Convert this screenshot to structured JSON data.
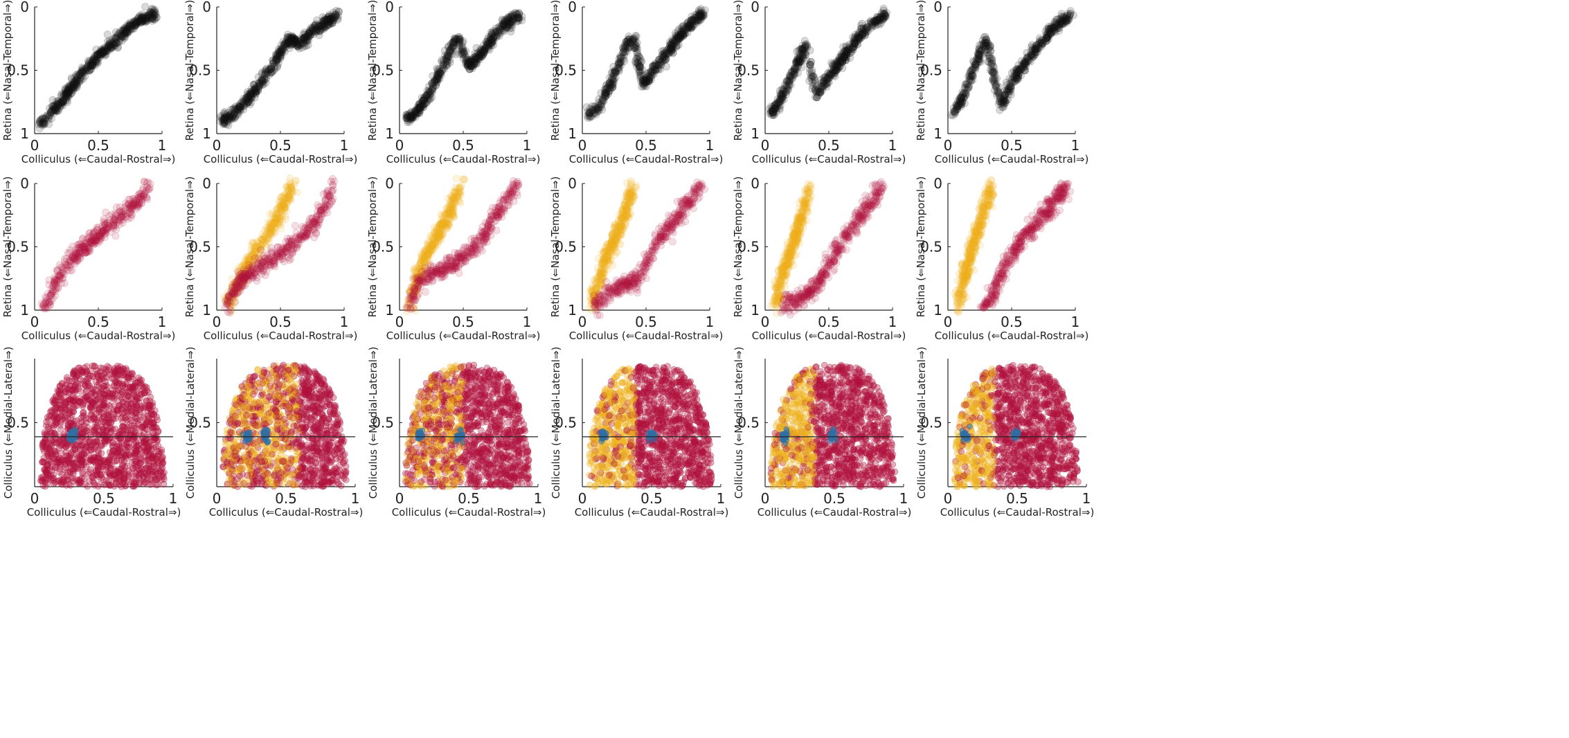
{
  "colors": {
    "black_points": "#111111",
    "crimson": "#b0123d",
    "gold": "#eeb11e",
    "blue": "#2f6fa4",
    "axis": "#222222"
  },
  "labels": {
    "xlabel": "Colliculus (⇐Caudal-Rostral⇒)",
    "ylabel_retina": "Retina (⇐Nasal-Temporal⇒)",
    "ylabel_colliculus": "Colliculus (⇐Medial-Lateral⇒)"
  },
  "chart_data": [
    {
      "panel": "row1-col1",
      "type": "scatter",
      "xlim": [
        0,
        1
      ],
      "ylim": [
        1,
        0
      ],
      "y_reversed": true,
      "xticks": [
        "0",
        "0.5",
        "1"
      ],
      "yticks": [
        "0",
        "0.5",
        "1"
      ],
      "series": [
        {
          "color": "black",
          "x": [
            0.04,
            0.1,
            0.2,
            0.3,
            0.4,
            0.5,
            0.6,
            0.7,
            0.8,
            0.9,
            0.95
          ],
          "y": [
            0.92,
            0.88,
            0.76,
            0.62,
            0.5,
            0.39,
            0.3,
            0.2,
            0.12,
            0.07,
            0.06
          ]
        }
      ]
    },
    {
      "panel": "row1-col2",
      "type": "scatter",
      "xlim": [
        0,
        1
      ],
      "ylim": [
        1,
        0
      ],
      "y_reversed": true,
      "xticks": [
        "0",
        "0.5",
        "1"
      ],
      "yticks": [
        "0",
        "0.5",
        "1"
      ],
      "series": [
        {
          "color": "black",
          "x": [
            0.04,
            0.15,
            0.25,
            0.35,
            0.45,
            0.52,
            0.58,
            0.65,
            0.75,
            0.85,
            0.95
          ],
          "y": [
            0.9,
            0.84,
            0.72,
            0.6,
            0.45,
            0.32,
            0.25,
            0.3,
            0.2,
            0.12,
            0.06
          ]
        }
      ]
    },
    {
      "panel": "row1-col3",
      "type": "scatter",
      "xlim": [
        0,
        1
      ],
      "ylim": [
        1,
        0
      ],
      "y_reversed": true,
      "xticks": [
        "0",
        "0.5",
        "1"
      ],
      "yticks": [
        "0",
        "0.5",
        "1"
      ],
      "series": [
        {
          "color": "black",
          "x": [
            0.04,
            0.15,
            0.25,
            0.35,
            0.45,
            0.55,
            0.65,
            0.75,
            0.85,
            0.95
          ],
          "y": [
            0.88,
            0.82,
            0.65,
            0.45,
            0.23,
            0.48,
            0.35,
            0.22,
            0.12,
            0.07
          ]
        }
      ]
    },
    {
      "panel": "row1-col4",
      "type": "scatter",
      "xlim": [
        0,
        1
      ],
      "ylim": [
        1,
        0
      ],
      "y_reversed": true,
      "xticks": [
        "0",
        "0.5",
        "1"
      ],
      "yticks": [
        "0",
        "0.5",
        "1"
      ],
      "series": [
        {
          "color": "black",
          "x": [
            0.04,
            0.12,
            0.2,
            0.28,
            0.35,
            0.4,
            0.48,
            0.55,
            0.65,
            0.75,
            0.85,
            0.95
          ],
          "y": [
            0.84,
            0.8,
            0.65,
            0.48,
            0.3,
            0.24,
            0.62,
            0.52,
            0.38,
            0.25,
            0.13,
            0.05
          ]
        }
      ]
    },
    {
      "panel": "row1-col5",
      "type": "scatter",
      "xlim": [
        0,
        1
      ],
      "ylim": [
        1,
        0
      ],
      "y_reversed": true,
      "xticks": [
        "0",
        "0.5",
        "1"
      ],
      "yticks": [
        "0",
        "0.5",
        "1"
      ],
      "series": [
        {
          "color": "black",
          "x": [
            0.04,
            0.1,
            0.18,
            0.25,
            0.32,
            0.4,
            0.45,
            0.55,
            0.65,
            0.75,
            0.85,
            0.95
          ],
          "y": [
            0.84,
            0.78,
            0.6,
            0.45,
            0.3,
            0.7,
            0.62,
            0.48,
            0.35,
            0.22,
            0.12,
            0.06
          ]
        }
      ]
    },
    {
      "panel": "row1-col6",
      "type": "scatter",
      "xlim": [
        0,
        1
      ],
      "ylim": [
        1,
        0
      ],
      "y_reversed": true,
      "xticks": [
        "0",
        "0.5",
        "1"
      ],
      "yticks": [
        "0",
        "0.5",
        "1"
      ],
      "series": [
        {
          "color": "black",
          "x": [
            0.04,
            0.1,
            0.17,
            0.23,
            0.3,
            0.35,
            0.42,
            0.5,
            0.6,
            0.7,
            0.8,
            0.9,
            0.97
          ],
          "y": [
            0.84,
            0.75,
            0.58,
            0.42,
            0.25,
            0.5,
            0.78,
            0.6,
            0.45,
            0.32,
            0.2,
            0.1,
            0.06
          ]
        }
      ]
    },
    {
      "panel": "row2-col1",
      "type": "scatter",
      "xlim": [
        0,
        1
      ],
      "ylim": [
        1,
        0
      ],
      "y_reversed": true,
      "xticks": [
        "0",
        "0.5",
        "1"
      ],
      "yticks": [
        "0",
        "0.5",
        "1"
      ],
      "series": [
        {
          "color": "crimson",
          "x": [
            0.08,
            0.15,
            0.25,
            0.35,
            0.45,
            0.55,
            0.65,
            0.75,
            0.85,
            0.9
          ],
          "y": [
            0.97,
            0.82,
            0.65,
            0.55,
            0.46,
            0.36,
            0.28,
            0.2,
            0.1,
            0.02
          ]
        }
      ]
    },
    {
      "panel": "row2-col2",
      "type": "scatter",
      "xlim": [
        0,
        1
      ],
      "ylim": [
        1,
        0
      ],
      "y_reversed": true,
      "xticks": [
        "0",
        "0.5",
        "1"
      ],
      "yticks": [
        "0",
        "0.5",
        "1"
      ],
      "series": [
        {
          "color": "gold",
          "x": [
            0.08,
            0.15,
            0.25,
            0.35,
            0.45,
            0.55,
            0.6
          ],
          "y": [
            0.97,
            0.82,
            0.62,
            0.48,
            0.32,
            0.12,
            0.02
          ]
        },
        {
          "color": "crimson",
          "x": [
            0.08,
            0.15,
            0.25,
            0.4,
            0.55,
            0.7,
            0.8,
            0.88,
            0.92
          ],
          "y": [
            0.97,
            0.82,
            0.72,
            0.62,
            0.52,
            0.4,
            0.25,
            0.1,
            0.02
          ]
        }
      ]
    },
    {
      "panel": "row2-col3",
      "type": "scatter",
      "xlim": [
        0,
        1
      ],
      "ylim": [
        1,
        0
      ],
      "y_reversed": true,
      "xticks": [
        "0",
        "0.5",
        "1"
      ],
      "yticks": [
        "0",
        "0.5",
        "1"
      ],
      "series": [
        {
          "color": "gold",
          "x": [
            0.08,
            0.12,
            0.2,
            0.28,
            0.36,
            0.44,
            0.48
          ],
          "y": [
            0.97,
            0.8,
            0.6,
            0.45,
            0.3,
            0.12,
            0.02
          ]
        },
        {
          "color": "crimson",
          "x": [
            0.08,
            0.15,
            0.3,
            0.45,
            0.58,
            0.68,
            0.78,
            0.86,
            0.92
          ],
          "y": [
            0.97,
            0.78,
            0.7,
            0.62,
            0.52,
            0.38,
            0.22,
            0.1,
            0.02
          ]
        }
      ]
    },
    {
      "panel": "row2-col4",
      "type": "scatter",
      "xlim": [
        0,
        1
      ],
      "ylim": [
        1,
        0
      ],
      "y_reversed": true,
      "xticks": [
        "0",
        "0.5",
        "1"
      ],
      "yticks": [
        "0",
        "0.5",
        "1"
      ],
      "series": [
        {
          "color": "gold",
          "x": [
            0.08,
            0.12,
            0.18,
            0.25,
            0.32,
            0.38,
            0.4
          ],
          "y": [
            0.97,
            0.8,
            0.6,
            0.45,
            0.28,
            0.1,
            0.02
          ]
        },
        {
          "color": "crimson",
          "x": [
            0.1,
            0.2,
            0.35,
            0.45,
            0.52,
            0.6,
            0.7,
            0.8,
            0.88,
            0.93
          ],
          "y": [
            0.97,
            0.87,
            0.8,
            0.75,
            0.6,
            0.45,
            0.32,
            0.2,
            0.08,
            0.02
          ]
        }
      ]
    },
    {
      "panel": "row2-col5",
      "type": "scatter",
      "xlim": [
        0,
        1
      ],
      "ylim": [
        1,
        0
      ],
      "y_reversed": true,
      "xticks": [
        "0",
        "0.5",
        "1"
      ],
      "yticks": [
        "0",
        "0.5",
        "1"
      ],
      "series": [
        {
          "color": "gold",
          "x": [
            0.08,
            0.12,
            0.18,
            0.24,
            0.3,
            0.34
          ],
          "y": [
            0.97,
            0.78,
            0.58,
            0.42,
            0.22,
            0.02
          ]
        },
        {
          "color": "crimson",
          "x": [
            0.15,
            0.28,
            0.4,
            0.48,
            0.55,
            0.63,
            0.72,
            0.8,
            0.88,
            0.92
          ],
          "y": [
            0.97,
            0.9,
            0.82,
            0.68,
            0.55,
            0.42,
            0.3,
            0.2,
            0.08,
            0.02
          ]
        }
      ]
    },
    {
      "panel": "row2-col6",
      "type": "scatter",
      "xlim": [
        0,
        1
      ],
      "ylim": [
        1,
        0
      ],
      "y_reversed": true,
      "xticks": [
        "0",
        "0.5",
        "1"
      ],
      "yticks": [
        "0",
        "0.5",
        "1"
      ],
      "series": [
        {
          "color": "gold",
          "x": [
            0.08,
            0.12,
            0.17,
            0.22,
            0.28,
            0.34
          ],
          "y": [
            0.97,
            0.78,
            0.58,
            0.42,
            0.22,
            0.02
          ]
        },
        {
          "color": "crimson",
          "x": [
            0.28,
            0.35,
            0.42,
            0.5,
            0.6,
            0.7,
            0.8,
            0.88,
            0.93
          ],
          "y": [
            0.97,
            0.88,
            0.72,
            0.55,
            0.42,
            0.3,
            0.2,
            0.08,
            0.02
          ]
        }
      ]
    },
    {
      "panel": "row3-col1",
      "type": "scatter",
      "xlim": [
        0,
        1
      ],
      "ylim": [
        0,
        1
      ],
      "y_reversed": false,
      "xticks": [
        "0",
        "0.5",
        "1"
      ],
      "yticks": [
        "0.5"
      ],
      "hline_y": 0.39,
      "outline": {
        "x_min": 0.04,
        "x_max": 0.94,
        "y_max": 0.95
      },
      "series": [
        {
          "color": "crimson",
          "region": "full"
        },
        {
          "color": "blue",
          "cluster_centers": [
            [
              0.27,
              0.4
            ]
          ]
        }
      ]
    },
    {
      "panel": "row3-col2",
      "type": "scatter",
      "xlim": [
        0,
        1
      ],
      "ylim": [
        0,
        1
      ],
      "y_reversed": false,
      "xticks": [
        "0",
        "0.5",
        "1"
      ],
      "yticks": [
        "0.5"
      ],
      "hline_y": 0.39,
      "outline": {
        "x_min": 0.04,
        "x_max": 0.94,
        "y_max": 0.95
      },
      "series": [
        {
          "color": "crimson",
          "region": "full"
        },
        {
          "color": "gold",
          "region": "x < 0.6 (mixed)"
        },
        {
          "color": "blue",
          "cluster_centers": [
            [
              0.22,
              0.4
            ],
            [
              0.35,
              0.4
            ]
          ]
        }
      ]
    },
    {
      "panel": "row3-col3",
      "type": "scatter",
      "xlim": [
        0,
        1
      ],
      "ylim": [
        0,
        1
      ],
      "y_reversed": false,
      "xticks": [
        "0",
        "0.5",
        "1"
      ],
      "yticks": [
        "0.5"
      ],
      "hline_y": 0.39,
      "outline": {
        "x_min": 0.04,
        "x_max": 0.94,
        "y_max": 0.95
      },
      "series": [
        {
          "color": "crimson",
          "region": "full"
        },
        {
          "color": "gold",
          "region": "x < 0.46 (mixed)"
        },
        {
          "color": "blue",
          "cluster_centers": [
            [
              0.15,
              0.4
            ],
            [
              0.43,
              0.4
            ]
          ]
        }
      ]
    },
    {
      "panel": "row3-col4",
      "type": "scatter",
      "xlim": [
        0,
        1
      ],
      "ylim": [
        0,
        1
      ],
      "y_reversed": false,
      "xticks": [
        "0",
        "0.5",
        "1"
      ],
      "yticks": [
        "0.5"
      ],
      "hline_y": 0.39,
      "outline": {
        "x_min": 0.04,
        "x_max": 0.94,
        "y_max": 0.95
      },
      "series": [
        {
          "color": "crimson",
          "region": "full"
        },
        {
          "color": "gold",
          "region": "x < 0.38"
        },
        {
          "color": "blue",
          "cluster_centers": [
            [
              0.15,
              0.4
            ],
            [
              0.5,
              0.4
            ]
          ]
        }
      ]
    },
    {
      "panel": "row3-col5",
      "type": "scatter",
      "xlim": [
        0,
        1
      ],
      "ylim": [
        0,
        1
      ],
      "y_reversed": false,
      "xticks": [
        "0",
        "0.5",
        "1"
      ],
      "yticks": [
        "0.5"
      ],
      "hline_y": 0.39,
      "outline": {
        "x_min": 0.04,
        "x_max": 0.94,
        "y_max": 0.95
      },
      "series": [
        {
          "color": "crimson",
          "region": "full"
        },
        {
          "color": "gold",
          "region": "x < 0.36"
        },
        {
          "color": "blue",
          "cluster_centers": [
            [
              0.14,
              0.4
            ],
            [
              0.49,
              0.4
            ]
          ]
        }
      ]
    },
    {
      "panel": "row3-col6",
      "type": "scatter",
      "xlim": [
        0,
        1
      ],
      "ylim": [
        0,
        1
      ],
      "y_reversed": false,
      "xticks": [
        "0",
        "0.5",
        "1"
      ],
      "yticks": [
        "0.5"
      ],
      "hline_y": 0.39,
      "outline": {
        "x_min": 0.04,
        "x_max": 0.94,
        "y_max": 0.95
      },
      "series": [
        {
          "color": "crimson",
          "region": "full"
        },
        {
          "color": "gold",
          "region": "x < 0.33"
        },
        {
          "color": "blue",
          "cluster_centers": [
            [
              0.12,
              0.4
            ],
            [
              0.49,
              0.4
            ]
          ]
        }
      ]
    }
  ]
}
